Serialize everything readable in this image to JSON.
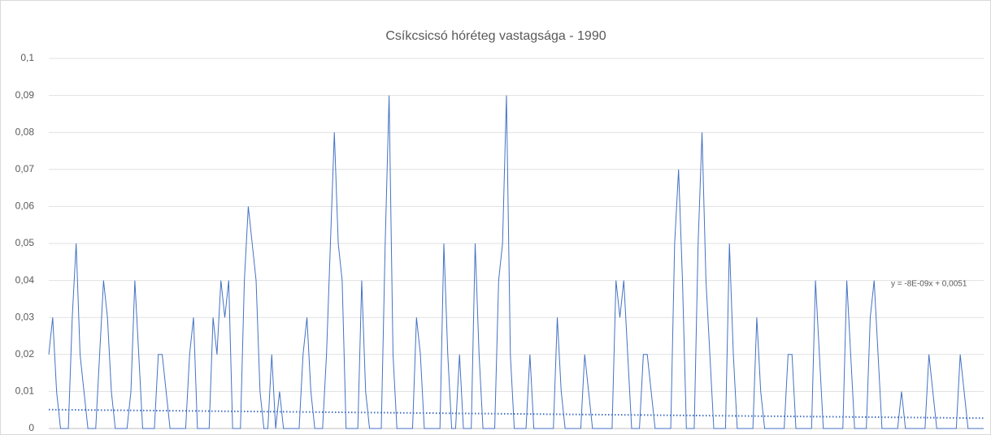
{
  "chart_data": {
    "type": "line",
    "title": "Csíkcsicsó hóréteg vastagsága - 1990",
    "series": [
      {
        "color": "#4472c4",
        "values": [
          0.02,
          0.03,
          0.01,
          0,
          0,
          0,
          0.03,
          0.05,
          0.02,
          0.01,
          0,
          0,
          0,
          0.02,
          0.04,
          0.03,
          0.01,
          0,
          0,
          0,
          0,
          0.01,
          0.04,
          0.02,
          0,
          0,
          0,
          0,
          0.02,
          0.02,
          0.01,
          0,
          0,
          0,
          0,
          0,
          0.02,
          0.03,
          0,
          0,
          0,
          0,
          0.03,
          0.02,
          0.04,
          0.03,
          0.04,
          0,
          0,
          0,
          0.04,
          0.06,
          0.05,
          0.04,
          0.01,
          0,
          0,
          0.02,
          0,
          0.01,
          0,
          0,
          0,
          0,
          0,
          0.02,
          0.03,
          0.01,
          0,
          0,
          0,
          0.02,
          0.05,
          0.08,
          0.05,
          0.04,
          0,
          0,
          0,
          0,
          0.04,
          0.01,
          0,
          0,
          0,
          0,
          0.05,
          0.09,
          0.02,
          0,
          0,
          0,
          0,
          0,
          0.03,
          0.02,
          0,
          0,
          0,
          0,
          0,
          0.05,
          0.02,
          0,
          0,
          0.02,
          0,
          0,
          0,
          0.05,
          0.02,
          0,
          0,
          0,
          0,
          0.04,
          0.05,
          0.09,
          0.02,
          0,
          0,
          0,
          0,
          0.02,
          0,
          0,
          0,
          0,
          0,
          0,
          0.03,
          0.01,
          0,
          0,
          0,
          0,
          0,
          0.02,
          0.01,
          0,
          0,
          0,
          0,
          0,
          0,
          0.04,
          0.03,
          0.04,
          0.02,
          0,
          0,
          0,
          0.02,
          0.02,
          0.01,
          0,
          0,
          0,
          0,
          0,
          0.05,
          0.07,
          0.04,
          0,
          0,
          0,
          0.05,
          0.08,
          0.04,
          0.02,
          0,
          0,
          0,
          0,
          0.05,
          0.02,
          0,
          0,
          0,
          0,
          0,
          0.03,
          0.01,
          0,
          0,
          0,
          0,
          0,
          0,
          0.02,
          0.02,
          0,
          0,
          0,
          0,
          0,
          0.04,
          0.02,
          0,
          0,
          0,
          0,
          0,
          0,
          0.04,
          0.02,
          0,
          0,
          0,
          0,
          0.03,
          0.04,
          0.02,
          0,
          0,
          0,
          0,
          0,
          0.01,
          0,
          0,
          0,
          0,
          0,
          0,
          0.02,
          0.01,
          0,
          0,
          0,
          0,
          0,
          0,
          0.02,
          0.01,
          0,
          0,
          0,
          0,
          0
        ]
      }
    ],
    "trendline": {
      "label": "y = -8E-09x + 0,0051",
      "values": [
        0.0051,
        0.0028
      ],
      "color": "#4472c4"
    },
    "ylim": [
      0,
      0.1
    ],
    "yticks": [
      0,
      {
        "value": 0.01,
        "label": "0,01"
      },
      {
        "value": 0.02,
        "label": "0,02"
      },
      {
        "value": 0.03,
        "label": "0,03"
      },
      {
        "value": 0.04,
        "label": "0,04"
      },
      {
        "value": 0.05,
        "label": "0,05"
      },
      {
        "value": 0.06,
        "label": "0,06"
      },
      {
        "value": 0.07,
        "label": "0,07"
      },
      {
        "value": 0.08,
        "label": "0,08"
      },
      {
        "value": 0.09,
        "label": "0,09"
      },
      {
        "value": 0.1,
        "label": "0,1"
      }
    ],
    "grid": true
  }
}
